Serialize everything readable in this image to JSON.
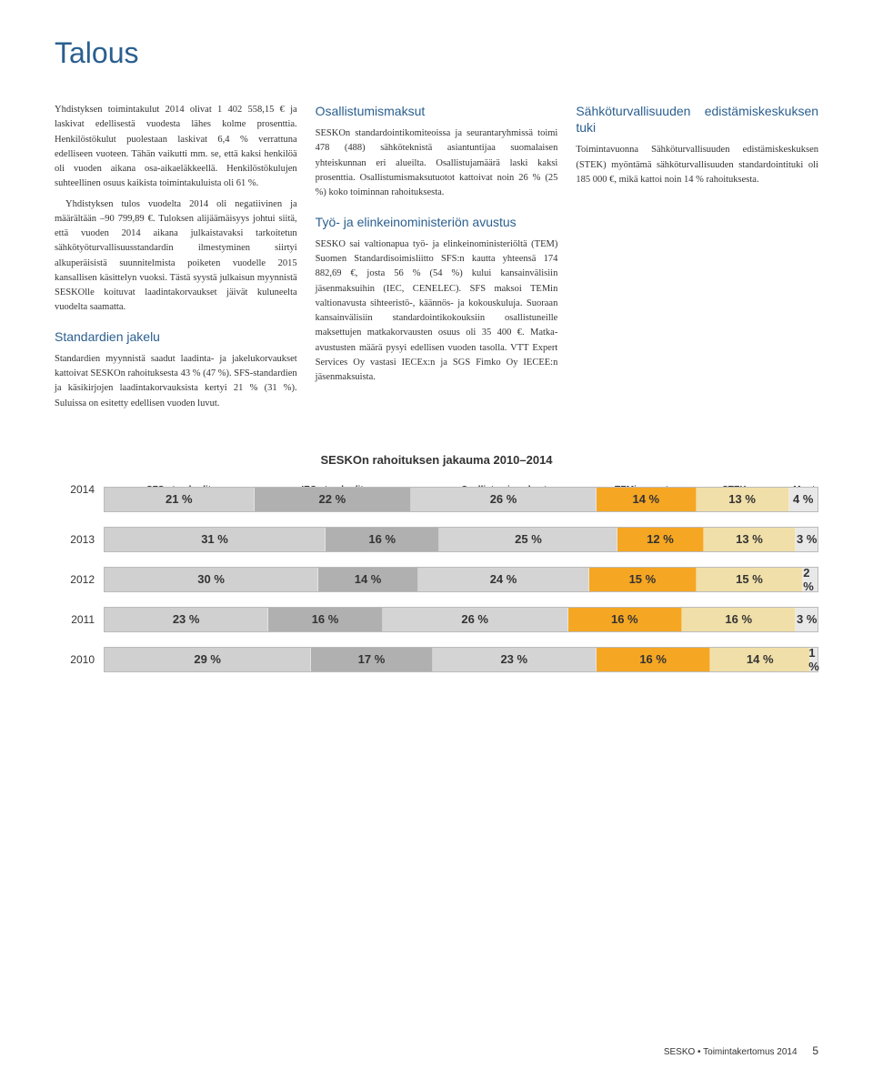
{
  "title": "Talous",
  "col1": {
    "p1": "Yhdistyksen toimintakulut 2014 olivat 1 402 558,15 € ja laskivat edellisestä vuodesta lähes kolme prosenttia. Henkilöstökulut puolestaan laskivat 6,4 % verrattuna edelliseen vuoteen. Tähän vaikutti mm. se, että kaksi henkilöä oli vuoden aikana osa-aikaeläkkeellä. Henkilöstökulujen suhteellinen osuus kaikista toimintakuluista oli 61 %.",
    "p2": "Yhdistyksen tulos vuodelta 2014 oli negatiivinen ja määrältään –90 799,89 €. Tuloksen alijäämäisyys johtui siitä, että vuoden 2014 aikana julkaistavaksi tarkoitetun sähkötyöturvallisuusstandardin ilmestyminen siirtyi alkuperäisistä suunnitelmista poiketen vuodelle 2015 kansallisen käsittelyn vuoksi. Tästä syystä julkaisun myynnistä SESKOlle koituvat laadintakorvaukset jäivät kuluneelta vuodelta saamatta.",
    "h1": "Standardien jakelu",
    "p3": "Standardien myynnistä saadut laadinta- ja jakelukorvaukset kattoivat SESKOn rahoituksesta 43 % (47 %). SFS-standardien ja käsikirjojen laadintakorvauksista kertyi 21 % (31 %). Suluissa on esitetty edellisen vuoden luvut."
  },
  "col2": {
    "h1": "Osallistumismaksut",
    "p1": "SESKOn standardointikomiteoissa ja seurantaryhmissä toimi 478 (488) sähköteknistä asiantuntijaa suomalaisen yhteiskunnan eri alueilta. Osallistujamäärä laski kaksi prosenttia. Osallistumismaksutuotot kattoivat noin 26 % (25 %) koko toiminnan rahoituksesta.",
    "h2": "Työ- ja elinkeinoministeriön avustus",
    "p2": "SESKO sai valtionapua työ- ja elinkeinoministeriöltä (TEM) Suomen Standardisoimisliitto SFS:n kautta yhteensä 174 882,69 €, josta 56 % (54 %) kului kansainvälisiin jäsenmaksuihin (IEC, CENELEC). SFS maksoi TEMin valtionavusta sihteeristö-, käännös- ja kokouskuluja. Suoraan kansainvälisiin standardointikokouksiin osallistuneille maksettujen matkakorvausten osuus oli 35 400 €. Matka-avustusten määrä pysyi edellisen vuoden tasolla. VTT Expert Services Oy vastasi IECEx:n ja SGS Fimko Oy IECEE:n jäsenmaksuista."
  },
  "col3": {
    "h1": "Sähköturvallisuuden edistämiskeskuksen tuki",
    "p1": "Toimintavuonna Sähköturvallisuuden edistämiskeskuksen (STEK) myöntämä sähköturvallisuuden standardointituki oli 185 000 €, mikä kattoi noin 14 % rahoituksesta."
  },
  "chart": {
    "title": "SESKOn rahoituksen jakauma 2010–2014",
    "headers": [
      "SFS-standardit",
      "IEC-standardit",
      "Osallistumismaksut",
      "TEMin avustus",
      "STEK ym.",
      "Muut"
    ],
    "colors": [
      "#d0d0d0",
      "#b0b0b0",
      "#d4d4d4",
      "#f5a623",
      "#f0dfa8",
      "#e8e8e8"
    ],
    "rows": [
      {
        "year": "2014",
        "values": [
          21,
          22,
          26,
          14,
          13,
          4
        ]
      },
      {
        "year": "2013",
        "values": [
          31,
          16,
          25,
          12,
          13,
          3
        ]
      },
      {
        "year": "2012",
        "values": [
          30,
          14,
          24,
          15,
          15,
          2
        ]
      },
      {
        "year": "2011",
        "values": [
          23,
          16,
          26,
          16,
          16,
          3
        ]
      },
      {
        "year": "2010",
        "values": [
          29,
          17,
          23,
          16,
          14,
          1
        ]
      }
    ]
  },
  "footer": {
    "text": "SESKO • Toimintakertomus 2014",
    "page": "5"
  }
}
